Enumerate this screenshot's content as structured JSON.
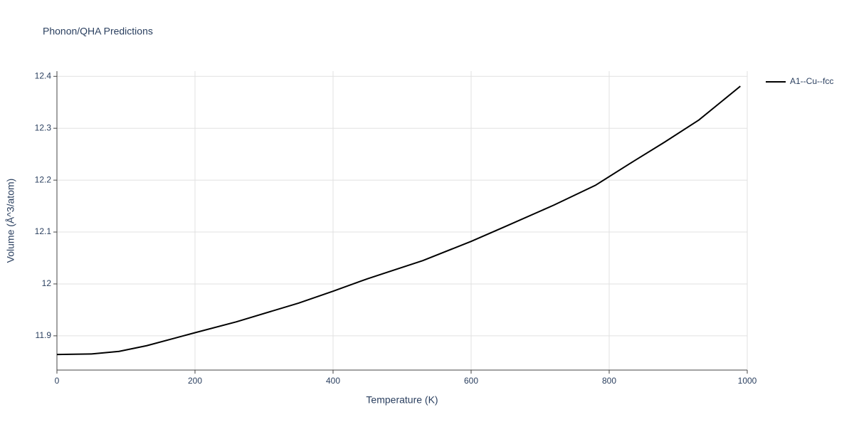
{
  "chart_data": {
    "type": "line",
    "title": "Phonon/QHA Predictions",
    "x_label": "Temperature (K)",
    "y_label": "Volume (Å^3/atom)",
    "x": [
      0,
      50,
      90,
      130,
      200,
      260,
      350,
      400,
      450,
      530,
      600,
      650,
      720,
      780,
      830,
      880,
      930,
      990
    ],
    "series": [
      {
        "name": "A1--Cu--fcc",
        "color": "#000000",
        "values": [
          11.864,
          11.865,
          11.87,
          11.881,
          11.906,
          11.927,
          11.963,
          11.986,
          12.01,
          12.045,
          12.082,
          12.111,
          12.152,
          12.19,
          12.232,
          12.273,
          12.316,
          12.381
        ]
      }
    ],
    "xlim": [
      0,
      1000
    ],
    "xticks": [
      0,
      200,
      400,
      600,
      800,
      1000
    ],
    "ylim": [
      11.834,
      12.41
    ],
    "yticks": [
      11.9,
      12,
      12.1,
      12.2,
      12.3,
      12.4
    ],
    "grid": true,
    "legend": "right"
  }
}
